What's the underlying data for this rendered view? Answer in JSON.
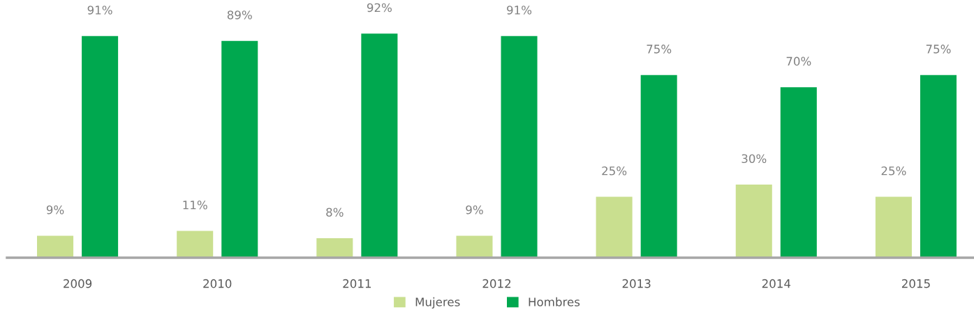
{
  "chart_data": {
    "type": "bar",
    "categories": [
      "2009",
      "2010",
      "2011",
      "2012",
      "2013",
      "2014",
      "2015"
    ],
    "series": [
      {
        "name": "Mujeres",
        "color": "#c9df8f",
        "values": [
          9,
          11,
          8,
          9,
          25,
          30,
          25
        ],
        "value_labels": [
          "9%",
          "11%",
          "8%",
          "9%",
          "25%",
          "30%",
          "25%"
        ]
      },
      {
        "name": "Hombres",
        "color": "#00a84f",
        "values": [
          91,
          89,
          92,
          91,
          75,
          70,
          75
        ],
        "value_labels": [
          "91%",
          "89%",
          "92%",
          "91%",
          "75%",
          "70%",
          "75%"
        ]
      }
    ],
    "legend": "bottom",
    "grid": false,
    "tick_labels": "x"
  }
}
